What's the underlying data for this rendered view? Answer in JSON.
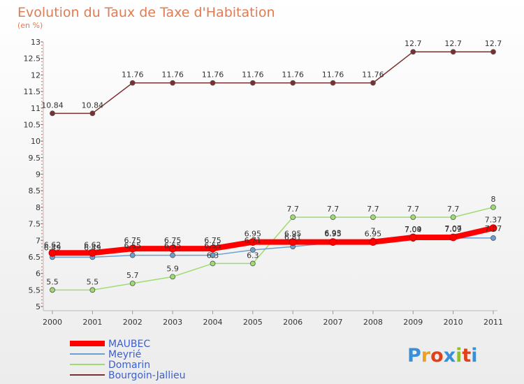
{
  "chart_data": {
    "type": "line",
    "title": "Evolution du Taux de Taxe d'Habitation",
    "subtitle": "(en %)",
    "x": [
      "2000",
      "2001",
      "2002",
      "2003",
      "2004",
      "2005",
      "2006",
      "2007",
      "2008",
      "2009",
      "2010",
      "2011"
    ],
    "ylim": [
      5,
      13
    ],
    "yticks": [
      "5",
      "5.5",
      "6",
      "6.5",
      "7",
      "7.5",
      "8",
      "8.5",
      "9",
      "9.5",
      "10",
      "10.5",
      "11",
      "11.5",
      "12",
      "12.5",
      "13"
    ],
    "grid": false,
    "legend_position": "bottom-left",
    "series": [
      {
        "name": "MAUBEC",
        "color": "#ff0000",
        "values": [
          6.62,
          6.62,
          6.75,
          6.75,
          6.75,
          6.95,
          6.95,
          6.95,
          6.95,
          7.09,
          7.09,
          7.37
        ],
        "labels": [
          "6.62",
          "6.62",
          "6.75",
          "6.75",
          "6.75",
          "6.95",
          "6.95",
          "6.95",
          "6.95",
          "7.09",
          "7.09",
          "7.37"
        ]
      },
      {
        "name": "Meyrié",
        "color": "#6a9fd1",
        "values": [
          6.49,
          6.49,
          6.55,
          6.55,
          6.55,
          6.71,
          6.81,
          6.93,
          7.0,
          7.04,
          7.07,
          7.07
        ],
        "labels": [
          "6.49",
          "6.49",
          "6.55",
          "6.55",
          "6.55",
          "6.71",
          "6.81",
          "6.93",
          "7",
          "7.04",
          "7.07",
          "7.07"
        ]
      },
      {
        "name": "Domarin",
        "color": "#9fdc6f",
        "values": [
          5.5,
          5.5,
          5.7,
          5.9,
          6.3,
          6.3,
          7.7,
          7.7,
          7.7,
          7.7,
          7.7,
          8.0
        ],
        "labels": [
          "5.5",
          "5.5",
          "5.7",
          "5.9",
          "6.3",
          "6.3",
          "7.7",
          "7.7",
          "7.7",
          "7.7",
          "7.7",
          "8"
        ]
      },
      {
        "name": "Bourgoin-Jallieu",
        "color": "#7a3030",
        "values": [
          10.84,
          10.84,
          11.76,
          11.76,
          11.76,
          11.76,
          11.76,
          11.76,
          11.76,
          12.7,
          12.7,
          12.7
        ],
        "labels": [
          "10.84",
          "10.84",
          "11.76",
          "11.76",
          "11.76",
          "11.76",
          "11.76",
          "11.76",
          "11.76",
          "12.7",
          "12.7",
          "12.7"
        ]
      }
    ]
  },
  "logo": {
    "text": "Proxiti",
    "colors": [
      "#3a8fd6",
      "#f0a020",
      "#e0401a",
      "#3a8fd6",
      "#8fbf2a",
      "#e0401a",
      "#3a8fd6"
    ]
  }
}
